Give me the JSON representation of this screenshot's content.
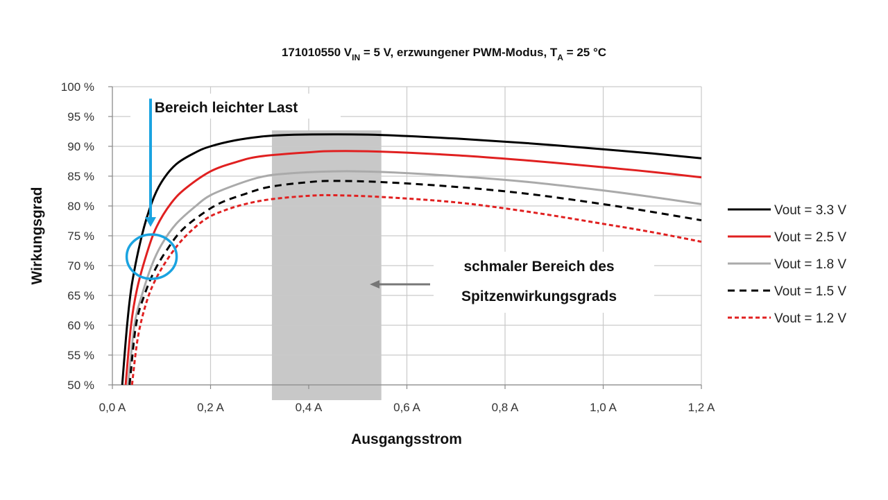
{
  "chart_data": {
    "type": "line",
    "title": {
      "prefix": "171010550 V",
      "sub1": "IN",
      "mid": " = 5 V, erzwungener PWM-Modus, T",
      "sub2": "A",
      "suffix": " = 25 °C"
    },
    "xlabel": "Ausgangsstrom",
    "ylabel": "Wirkungsgrad",
    "xlim": [
      0,
      1.2
    ],
    "ylim": [
      50,
      100
    ],
    "x_ticks": [
      {
        "value": 0.0,
        "label": "0,0 A"
      },
      {
        "value": 0.2,
        "label": "0,2 A"
      },
      {
        "value": 0.4,
        "label": "0,4 A"
      },
      {
        "value": 0.6,
        "label": "0,6 A"
      },
      {
        "value": 0.8,
        "label": "0,8 A"
      },
      {
        "value": 1.0,
        "label": "1,0 A"
      },
      {
        "value": 1.2,
        "label": "1,2 A"
      }
    ],
    "y_ticks": [
      {
        "value": 50,
        "label": "50 %"
      },
      {
        "value": 55,
        "label": "55 %"
      },
      {
        "value": 60,
        "label": "60 %"
      },
      {
        "value": 65,
        "label": "65 %"
      },
      {
        "value": 70,
        "label": "70 %"
      },
      {
        "value": 75,
        "label": "75 %"
      },
      {
        "value": 80,
        "label": "80 %"
      },
      {
        "value": 85,
        "label": "85 %"
      },
      {
        "value": 90,
        "label": "90 %"
      },
      {
        "value": 95,
        "label": "95 %"
      },
      {
        "value": 100,
        "label": "100 %"
      }
    ],
    "grid": true,
    "legend_position": "right",
    "series": [
      {
        "name": "Vout = 3.3 V",
        "color": "#000000",
        "dash": "solid",
        "points": [
          [
            0.02,
            50
          ],
          [
            0.03,
            60
          ],
          [
            0.04,
            67
          ],
          [
            0.06,
            75
          ],
          [
            0.08,
            80.5
          ],
          [
            0.1,
            84
          ],
          [
            0.13,
            87
          ],
          [
            0.17,
            89
          ],
          [
            0.2,
            90
          ],
          [
            0.25,
            91
          ],
          [
            0.3,
            91.6
          ],
          [
            0.35,
            91.9
          ],
          [
            0.45,
            92
          ],
          [
            0.55,
            91.9
          ],
          [
            0.7,
            91.3
          ],
          [
            0.85,
            90.5
          ],
          [
            1.0,
            89.5
          ],
          [
            1.1,
            88.8
          ],
          [
            1.2,
            88
          ]
        ]
      },
      {
        "name": "Vout = 2.5 V",
        "color": "#e02020",
        "dash": "solid",
        "points": [
          [
            0.027,
            50
          ],
          [
            0.038,
            60
          ],
          [
            0.05,
            66
          ],
          [
            0.07,
            72
          ],
          [
            0.09,
            76.5
          ],
          [
            0.12,
            80.5
          ],
          [
            0.15,
            83
          ],
          [
            0.2,
            85.8
          ],
          [
            0.25,
            87.3
          ],
          [
            0.3,
            88.3
          ],
          [
            0.4,
            89
          ],
          [
            0.45,
            89.2
          ],
          [
            0.55,
            89.1
          ],
          [
            0.7,
            88.5
          ],
          [
            0.85,
            87.6
          ],
          [
            1.0,
            86.5
          ],
          [
            1.1,
            85.7
          ],
          [
            1.2,
            84.8
          ]
        ]
      },
      {
        "name": "Vout = 1.8 V",
        "color": "#aaaaaa",
        "dash": "solid",
        "points": [
          [
            0.032,
            50
          ],
          [
            0.045,
            60
          ],
          [
            0.06,
            65
          ],
          [
            0.08,
            70
          ],
          [
            0.1,
            73.5
          ],
          [
            0.13,
            77
          ],
          [
            0.17,
            80
          ],
          [
            0.2,
            81.8
          ],
          [
            0.25,
            83.5
          ],
          [
            0.3,
            84.8
          ],
          [
            0.35,
            85.4
          ],
          [
            0.45,
            85.8
          ],
          [
            0.55,
            85.7
          ],
          [
            0.7,
            85
          ],
          [
            0.85,
            84
          ],
          [
            1.0,
            82.6
          ],
          [
            1.1,
            81.5
          ],
          [
            1.2,
            80.3
          ]
        ]
      },
      {
        "name": "Vout = 1.5 V",
        "color": "#000000",
        "dash": "dashed",
        "points": [
          [
            0.035,
            50
          ],
          [
            0.048,
            60
          ],
          [
            0.065,
            65
          ],
          [
            0.085,
            69
          ],
          [
            0.11,
            72.5
          ],
          [
            0.14,
            75.8
          ],
          [
            0.18,
            78.5
          ],
          [
            0.22,
            80.5
          ],
          [
            0.27,
            82
          ],
          [
            0.32,
            83.2
          ],
          [
            0.4,
            84
          ],
          [
            0.45,
            84.2
          ],
          [
            0.55,
            84
          ],
          [
            0.7,
            83.2
          ],
          [
            0.85,
            82
          ],
          [
            1.0,
            80.3
          ],
          [
            1.1,
            79
          ],
          [
            1.2,
            77.6
          ]
        ]
      },
      {
        "name": "Vout = 1.2 V",
        "color": "#e02020",
        "dash": "dotted",
        "points": [
          [
            0.04,
            50
          ],
          [
            0.052,
            58
          ],
          [
            0.07,
            64
          ],
          [
            0.09,
            68
          ],
          [
            0.12,
            72
          ],
          [
            0.15,
            75
          ],
          [
            0.19,
            77.8
          ],
          [
            0.23,
            79.3
          ],
          [
            0.28,
            80.5
          ],
          [
            0.33,
            81.2
          ],
          [
            0.4,
            81.7
          ],
          [
            0.45,
            81.8
          ],
          [
            0.55,
            81.5
          ],
          [
            0.7,
            80.6
          ],
          [
            0.85,
            79
          ],
          [
            1.0,
            77
          ],
          [
            1.1,
            75.6
          ],
          [
            1.2,
            74
          ]
        ]
      }
    ],
    "annotations": {
      "light_load": "Bereich leichter Last",
      "peak_line1": "schmaler Bereich des",
      "peak_line2": "Spitzenwirkungsgrads",
      "peak_band_x": [
        0.325,
        0.548
      ],
      "light_load_circle_center": [
        0.08,
        71.5
      ],
      "light_load_arrow_from_y": 98,
      "light_load_arrow_to_y": 76.5
    }
  }
}
